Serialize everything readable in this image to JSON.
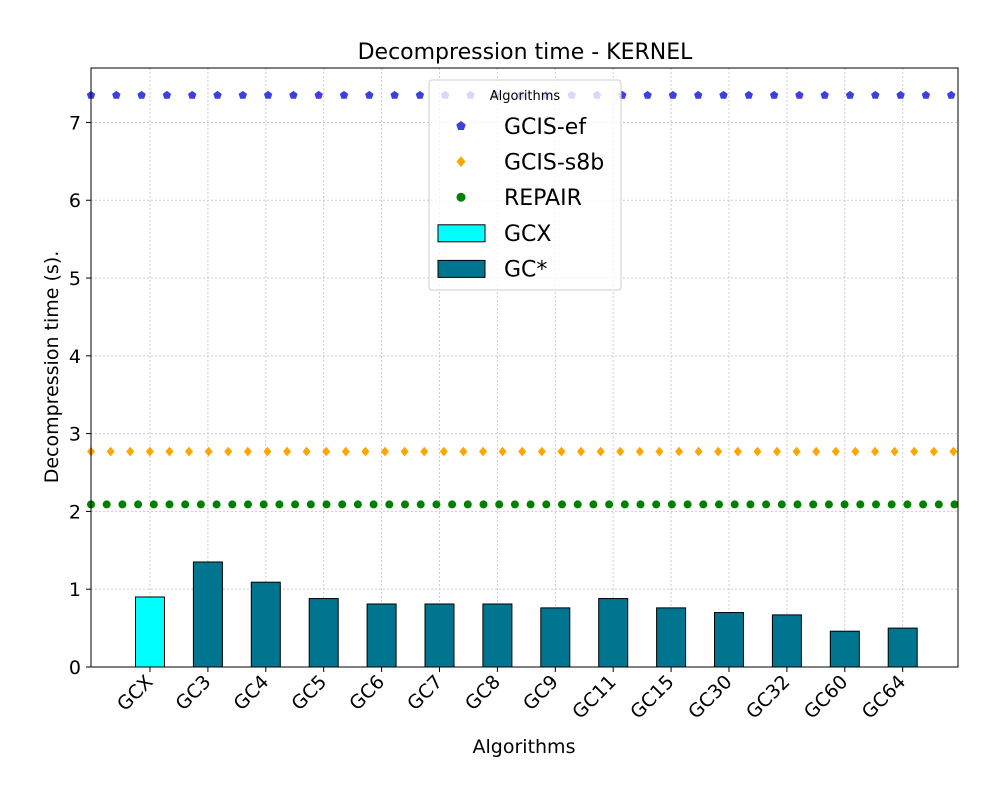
{
  "chart_data": {
    "type": "bar",
    "title": "Decompression time -  KERNEL",
    "xlabel": "Algorithms",
    "ylabel": "Decompression time (s).",
    "ylim": [
      0,
      7.7
    ],
    "yticks": [
      0,
      1,
      2,
      3,
      4,
      5,
      6,
      7
    ],
    "grid": true,
    "categories": [
      "GCX",
      "GC3",
      "GC4",
      "GC5",
      "GC6",
      "GC7",
      "GC8",
      "GC9",
      "GC11",
      "GC15",
      "GC30",
      "GC32",
      "GC60",
      "GC64"
    ],
    "bar_series": [
      {
        "name": "GCX",
        "color": "#00ffff",
        "values": [
          0.9,
          null,
          null,
          null,
          null,
          null,
          null,
          null,
          null,
          null,
          null,
          null,
          null,
          null
        ]
      },
      {
        "name": "GC*",
        "color": "#00758f",
        "values": [
          null,
          1.35,
          1.09,
          0.88,
          0.81,
          0.81,
          0.81,
          0.76,
          0.88,
          0.76,
          0.7,
          0.67,
          0.46,
          0.5
        ]
      }
    ],
    "reference_lines": [
      {
        "name": "GCIS-ef",
        "value": 7.35,
        "color": "#3f3fe0",
        "marker": "pentagon"
      },
      {
        "name": "GCIS-s8b",
        "value": 2.77,
        "color": "#ffa500",
        "marker": "diamond"
      },
      {
        "name": "REPAIR",
        "value": 2.09,
        "color": "#008000",
        "marker": "circle"
      }
    ],
    "legend": {
      "title": "Algorithms",
      "placement": "top-center",
      "entries": [
        {
          "label": "GCIS-ef",
          "kind": "marker"
        },
        {
          "label": "GCIS-s8b",
          "kind": "marker"
        },
        {
          "label": "REPAIR",
          "kind": "marker"
        },
        {
          "label": "GCX",
          "kind": "bar"
        },
        {
          "label": "GC*",
          "kind": "bar"
        }
      ]
    }
  }
}
